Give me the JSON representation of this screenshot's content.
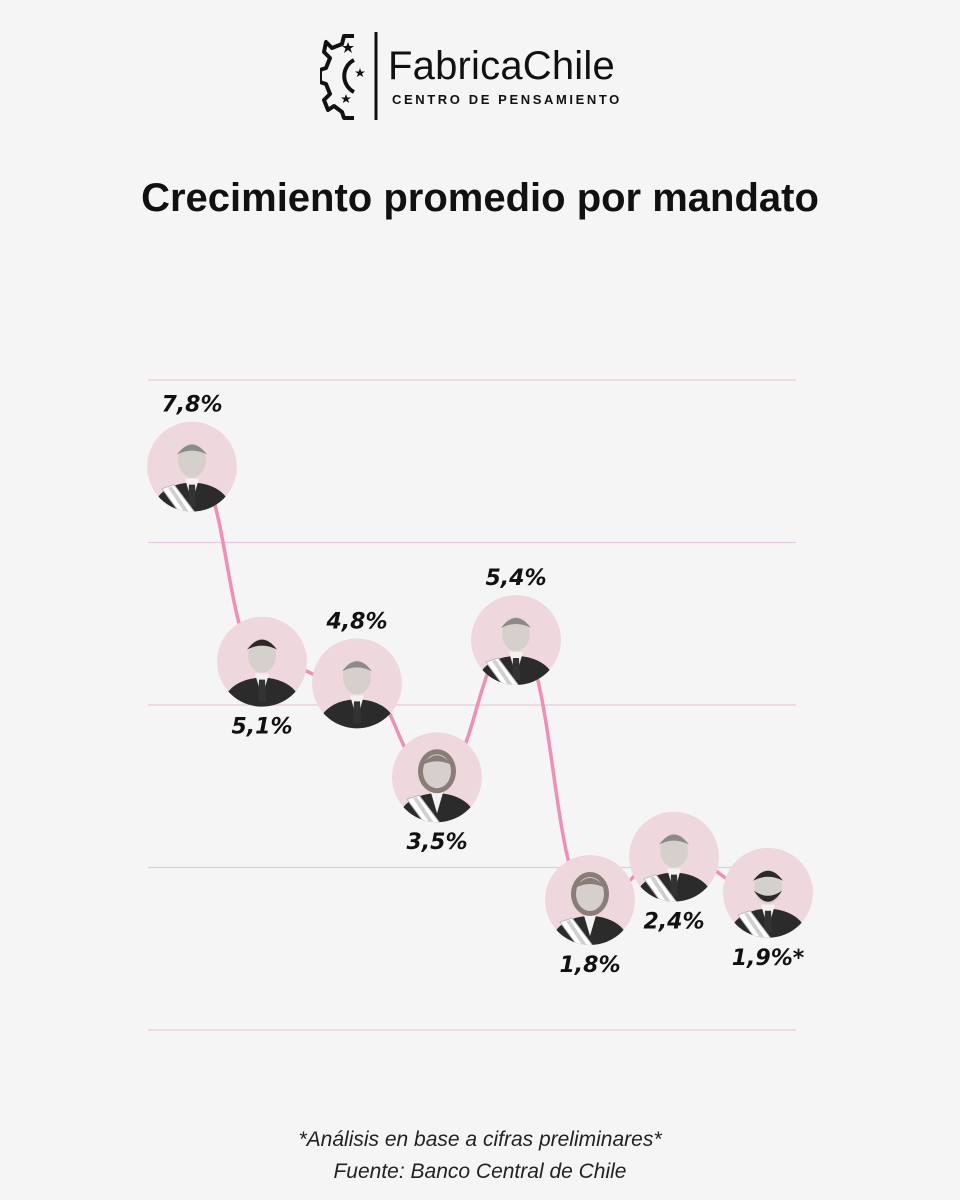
{
  "brand": {
    "name": "FabricaChile",
    "tagline": "CENTRO DE PENSAMIENTO"
  },
  "colors": {
    "line": "#ee8fb8",
    "grid": "#e6c9dc",
    "portrait_bg": "#eed8dd",
    "text": "#111111"
  },
  "chart_data": {
    "type": "line",
    "title": "Crecimiento promedio por mandato",
    "xlabel": "",
    "ylabel": "",
    "ylim": [
      0,
      9
    ],
    "grid": true,
    "legend": "none",
    "points": [
      {
        "value": 7.8,
        "label": "7,8%",
        "label_pos": "above",
        "icon": "portrait-man-white-hair-sash"
      },
      {
        "value": 5.1,
        "label": "5,1%",
        "label_pos": "below",
        "icon": "portrait-man-dark-hair"
      },
      {
        "value": 4.8,
        "label": "4,8%",
        "label_pos": "above",
        "icon": "portrait-man-light-hair"
      },
      {
        "value": 3.5,
        "label": "3,5%",
        "label_pos": "below",
        "icon": "portrait-woman-sash"
      },
      {
        "value": 5.4,
        "label": "5,4%",
        "label_pos": "above",
        "icon": "portrait-man-gray-hair-sash"
      },
      {
        "value": 1.8,
        "label": "1,8%",
        "label_pos": "below",
        "icon": "portrait-woman-sash"
      },
      {
        "value": 2.4,
        "label": "2,4%",
        "label_pos": "below",
        "icon": "portrait-man-gray-hair-sash"
      },
      {
        "value": 1.9,
        "label": "1,9%*",
        "label_pos": "below",
        "icon": "portrait-man-beard-sash"
      }
    ]
  },
  "footnote": "*Análisis en base a cifras preliminares*",
  "source": "Fuente: Banco Central de Chile"
}
